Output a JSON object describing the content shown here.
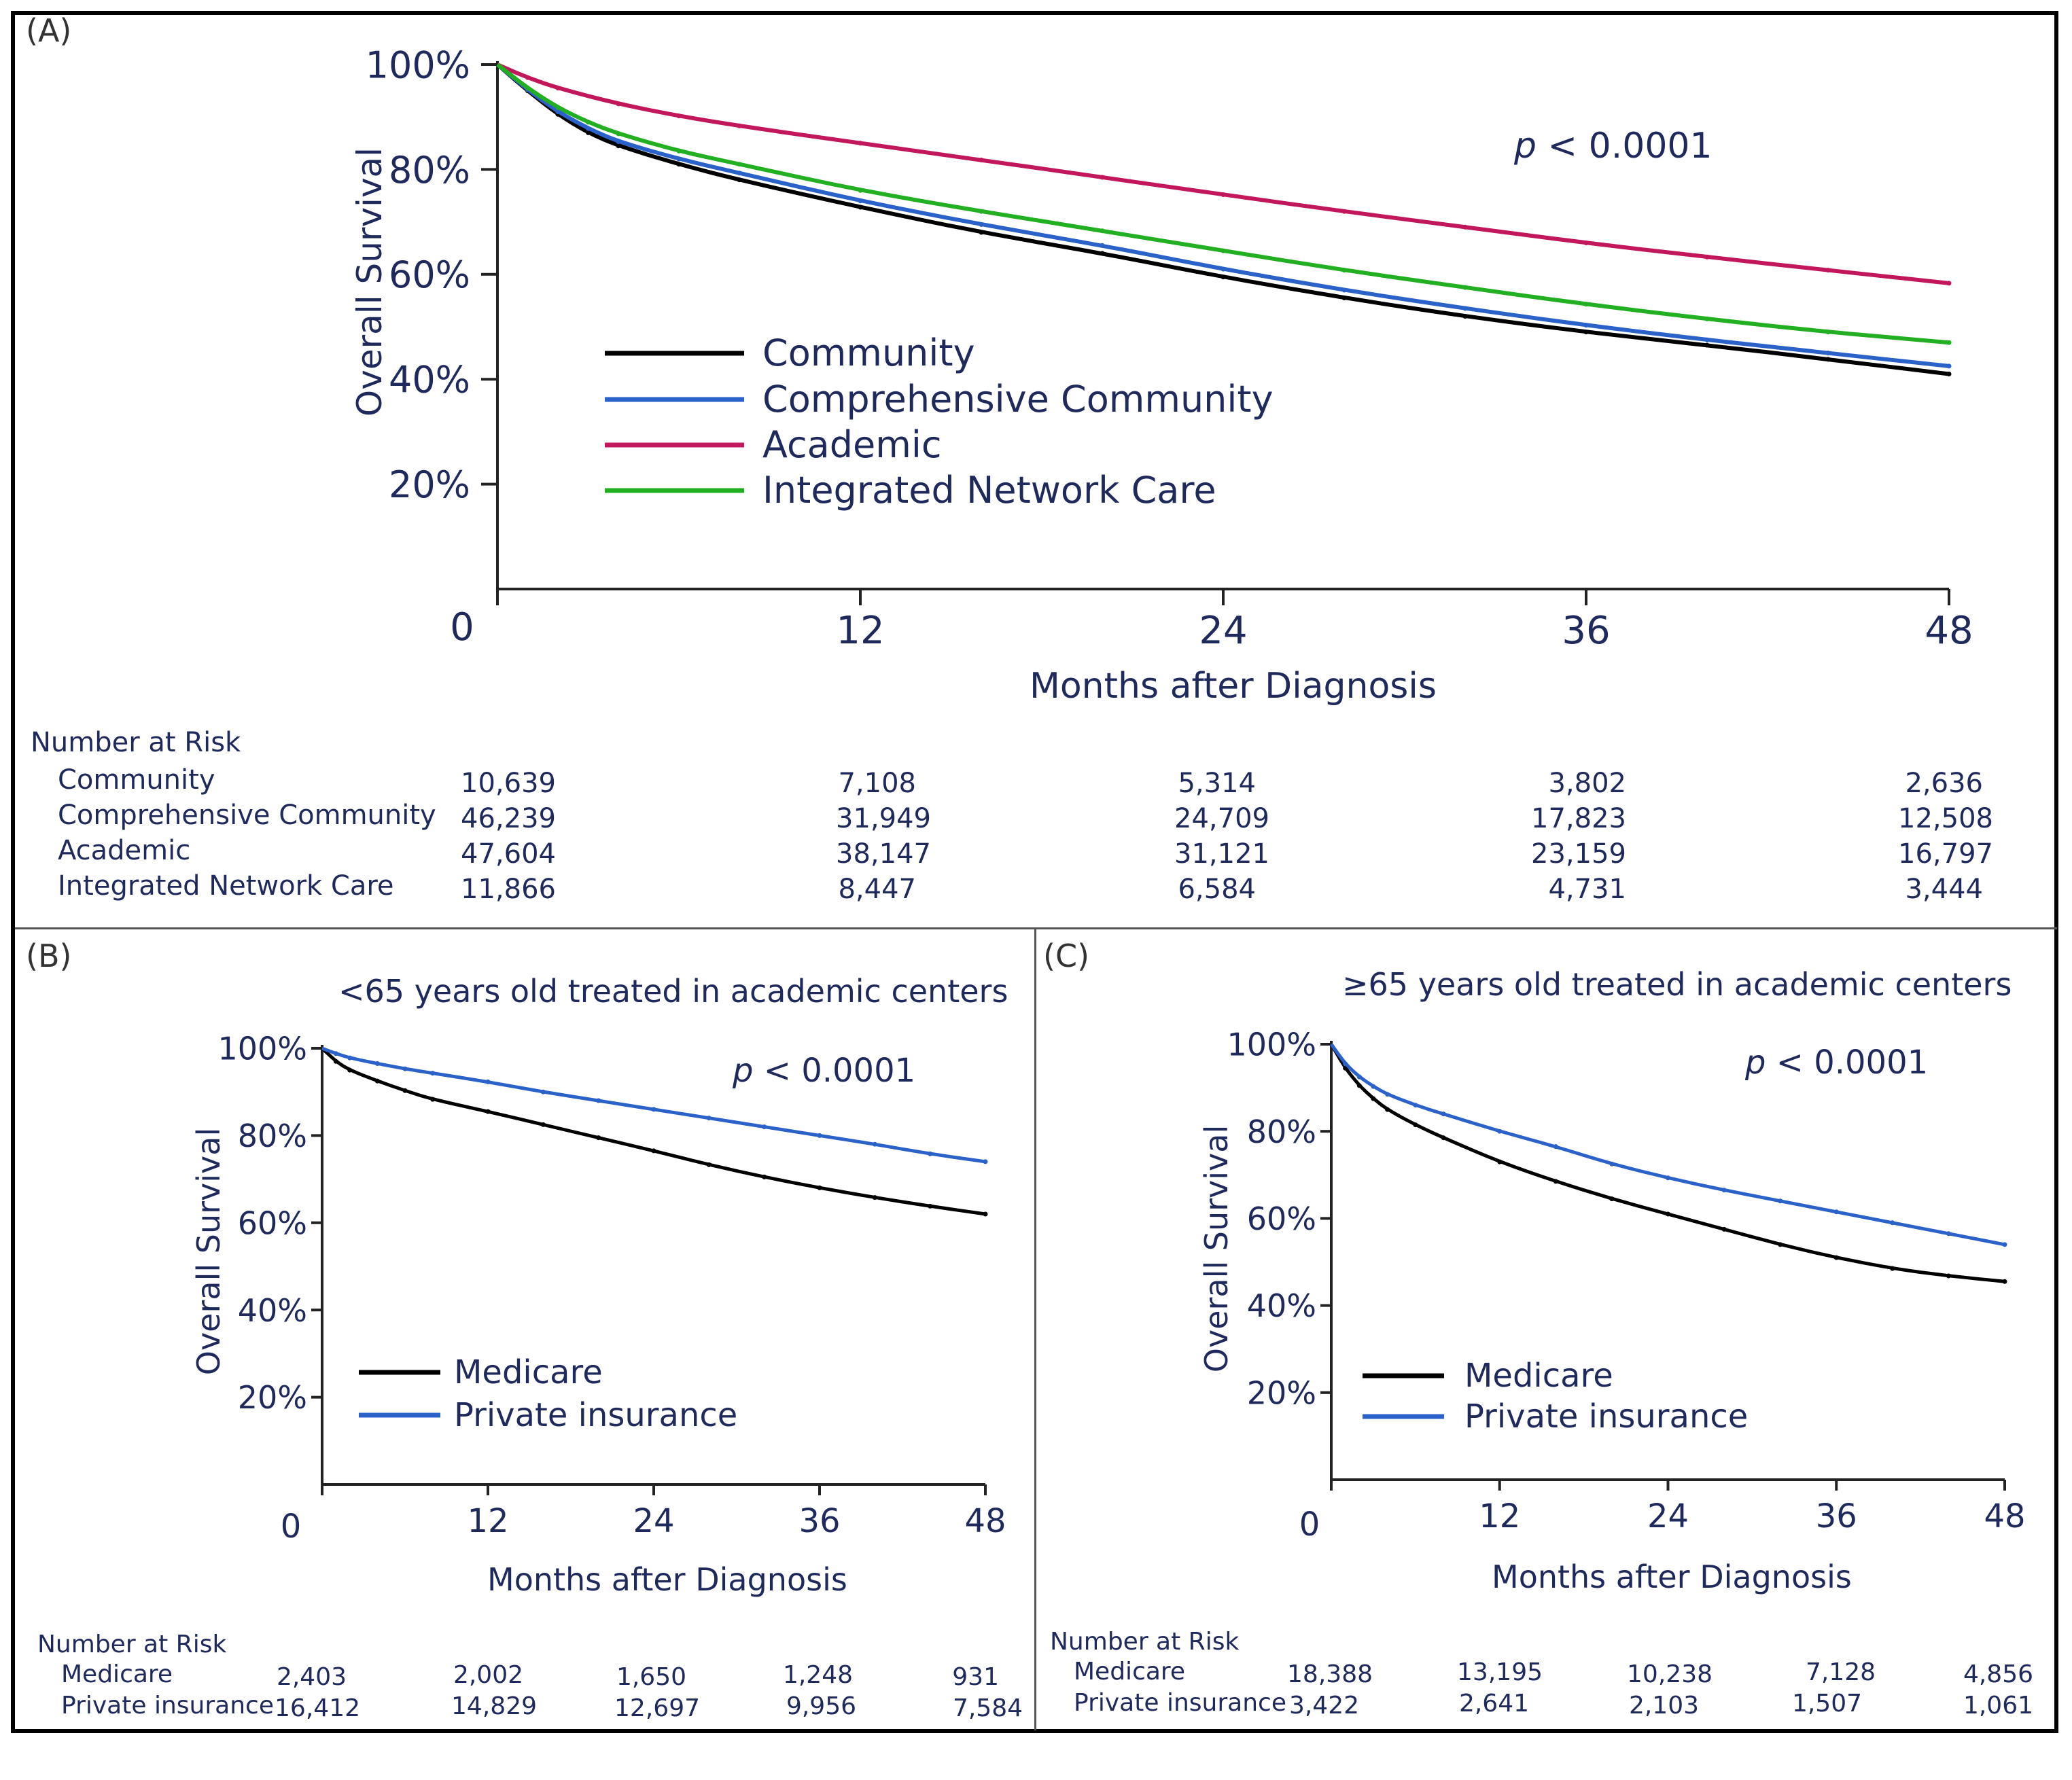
{
  "colors": {
    "community": "#000000",
    "comprehensive": "#2a62c9",
    "academic": "#c2185b",
    "integrated": "#22b022",
    "medicare": "#000000",
    "private": "#2a62c9",
    "text": "#1f2a5c"
  },
  "panels": {
    "a": {
      "label": "(A)",
      "ylabel": "Overall Survival",
      "xlabel": "Months after Diagnosis",
      "pvalue_p": "p",
      "pvalue_rest": " < 0.0001",
      "risk_header": "Number at Risk",
      "risk_rows": [
        {
          "name": "Community",
          "values": [
            "10,639",
            "7,108",
            "5,314",
            "3,802",
            "2,636"
          ]
        },
        {
          "name": "Comprehensive Community",
          "values": [
            "46,239",
            "31,949",
            "24,709",
            "17,823",
            "12,508"
          ]
        },
        {
          "name": "Academic",
          "values": [
            "47,604",
            "38,147",
            "31,121",
            "23,159",
            "16,797"
          ]
        },
        {
          "name": "Integrated Network Care",
          "values": [
            "11,866",
            "8,447",
            "6,584",
            "4,731",
            "3,444"
          ]
        }
      ]
    },
    "b": {
      "label": "(B)",
      "title": "<65 years old treated in academic centers",
      "ylabel": "Overall Survival",
      "xlabel": "Months after Diagnosis",
      "pvalue_p": "p",
      "pvalue_rest": " < 0.0001",
      "risk_header": "Number at Risk",
      "risk_rows": [
        {
          "name": "Medicare",
          "values": [
            "2,403",
            "2,002",
            "1,650",
            "1,248",
            "931"
          ]
        },
        {
          "name": "Private insurance",
          "values": [
            "16,412",
            "14,829",
            "12,697",
            "9,956",
            "7,584"
          ]
        }
      ]
    },
    "c": {
      "label": "(C)",
      "title": "≥65 years old treated in academic centers",
      "ylabel": "Overall Survival",
      "xlabel": "Months after Diagnosis",
      "pvalue_p": "p",
      "pvalue_rest": " < 0.0001",
      "risk_header": "Number at Risk",
      "risk_rows": [
        {
          "name": "Medicare",
          "values": [
            "18,388",
            "13,195",
            "10,238",
            "7,128",
            "4,856"
          ]
        },
        {
          "name": "Private insurance",
          "values": [
            "3,422",
            "2,641",
            "2,103",
            "1,507",
            "1,061"
          ]
        }
      ]
    }
  },
  "chart_data": [
    {
      "type": "line",
      "panel": "A",
      "title": "",
      "xlabel": "Months after Diagnosis",
      "ylabel": "Overall Survival",
      "xlim": [
        0,
        48
      ],
      "ylim": [
        0,
        100
      ],
      "x_ticks": [
        0,
        12,
        24,
        36,
        48
      ],
      "y_ticks": [
        20,
        40,
        60,
        80,
        100
      ],
      "x_tick_labels": [
        "0",
        "12",
        "24",
        "36",
        "48"
      ],
      "y_tick_labels": [
        "20%",
        "40%",
        "60%",
        "80%",
        "100%"
      ],
      "legend_position": "center-left",
      "series": [
        {
          "name": "Community",
          "color_key": "community",
          "x": [
            0,
            1,
            2,
            3,
            4,
            6,
            8,
            12,
            16,
            20,
            24,
            28,
            32,
            36,
            40,
            44,
            48
          ],
          "y": [
            100,
            95,
            90.5,
            87,
            84.5,
            81,
            78,
            72.8,
            68,
            64,
            59.5,
            55.5,
            52,
            49,
            46.5,
            43.8,
            41
          ]
        },
        {
          "name": "Comprehensive Community",
          "color_key": "comprehensive",
          "x": [
            0,
            1,
            2,
            3,
            4,
            6,
            8,
            12,
            16,
            20,
            24,
            28,
            32,
            36,
            40,
            44,
            48
          ],
          "y": [
            100,
            95.2,
            91,
            87.8,
            85.3,
            82,
            79.3,
            74,
            69.5,
            65.5,
            61,
            57,
            53.5,
            50.3,
            47.5,
            45,
            42.5
          ]
        },
        {
          "name": "Academic",
          "color_key": "academic",
          "x": [
            0,
            1,
            2,
            4,
            6,
            8,
            12,
            16,
            20,
            24,
            28,
            32,
            36,
            40,
            44,
            48
          ],
          "y": [
            100,
            97.5,
            95.5,
            92.5,
            90.2,
            88.3,
            85,
            81.8,
            78.5,
            75.2,
            72,
            69,
            66,
            63.3,
            60.8,
            58.3
          ]
        },
        {
          "name": "Integrated Network Care",
          "color_key": "integrated",
          "x": [
            0,
            1,
            2,
            3,
            4,
            6,
            8,
            12,
            16,
            20,
            24,
            28,
            32,
            36,
            40,
            44,
            48
          ],
          "y": [
            100,
            95.5,
            91.8,
            89,
            86.8,
            83.5,
            81,
            76,
            72,
            68.3,
            64.5,
            60.8,
            57.5,
            54.3,
            51.5,
            49,
            47
          ]
        }
      ]
    },
    {
      "type": "line",
      "panel": "B",
      "title": "<65 years old treated in academic centers",
      "xlabel": "Months after Diagnosis",
      "ylabel": "Overall Survival",
      "xlim": [
        0,
        48
      ],
      "ylim": [
        0,
        100
      ],
      "x_ticks": [
        0,
        12,
        24,
        36,
        48
      ],
      "y_ticks": [
        20,
        40,
        60,
        80,
        100
      ],
      "x_tick_labels": [
        "0",
        "12",
        "24",
        "36",
        "48"
      ],
      "y_tick_labels": [
        "20%",
        "40%",
        "60%",
        "80%",
        "100%"
      ],
      "legend_position": "bottom-left",
      "series": [
        {
          "name": "Medicare",
          "color_key": "medicare",
          "x": [
            0,
            1,
            2,
            4,
            6,
            8,
            12,
            16,
            20,
            24,
            28,
            32,
            36,
            40,
            44,
            48
          ],
          "y": [
            100,
            97,
            95,
            92.5,
            90.3,
            88.3,
            85.5,
            82.5,
            79.5,
            76.5,
            73.3,
            70.5,
            68,
            65.8,
            63.8,
            62
          ]
        },
        {
          "name": "Private insurance",
          "color_key": "private",
          "x": [
            0,
            1,
            2,
            4,
            6,
            8,
            12,
            16,
            20,
            24,
            28,
            32,
            36,
            40,
            44,
            48
          ],
          "y": [
            100,
            98.8,
            97.8,
            96.5,
            95.3,
            94.3,
            92.3,
            90,
            88,
            86,
            84,
            82,
            80,
            78,
            75.8,
            74
          ]
        }
      ]
    },
    {
      "type": "line",
      "panel": "C",
      "title": "≥65 years old treated in academic centers",
      "xlabel": "Months after Diagnosis",
      "ylabel": "Overall Survival",
      "xlim": [
        0,
        48
      ],
      "ylim": [
        0,
        100
      ],
      "x_ticks": [
        0,
        12,
        24,
        36,
        48
      ],
      "y_ticks": [
        20,
        40,
        60,
        80,
        100
      ],
      "x_tick_labels": [
        "0",
        "12",
        "24",
        "36",
        "48"
      ],
      "y_tick_labels": [
        "20%",
        "40%",
        "60%",
        "80%",
        "100%"
      ],
      "legend_position": "bottom-left",
      "series": [
        {
          "name": "Medicare",
          "color_key": "medicare",
          "x": [
            0,
            1,
            2,
            3,
            4,
            6,
            8,
            12,
            16,
            20,
            24,
            28,
            32,
            36,
            40,
            44,
            48
          ],
          "y": [
            100,
            94.5,
            90.5,
            87.5,
            85,
            81.5,
            78.5,
            73,
            68.5,
            64.5,
            61,
            57.5,
            54,
            51,
            48.5,
            46.8,
            45.5
          ]
        },
        {
          "name": "Private insurance",
          "color_key": "private",
          "x": [
            0,
            1,
            2,
            3,
            4,
            6,
            8,
            12,
            16,
            20,
            24,
            28,
            32,
            36,
            40,
            44,
            48
          ],
          "y": [
            100,
            95.5,
            92.5,
            90.3,
            88.5,
            86,
            84,
            80,
            76.5,
            72.5,
            69.3,
            66.5,
            64,
            61.5,
            59,
            56.5,
            54
          ]
        }
      ]
    }
  ]
}
